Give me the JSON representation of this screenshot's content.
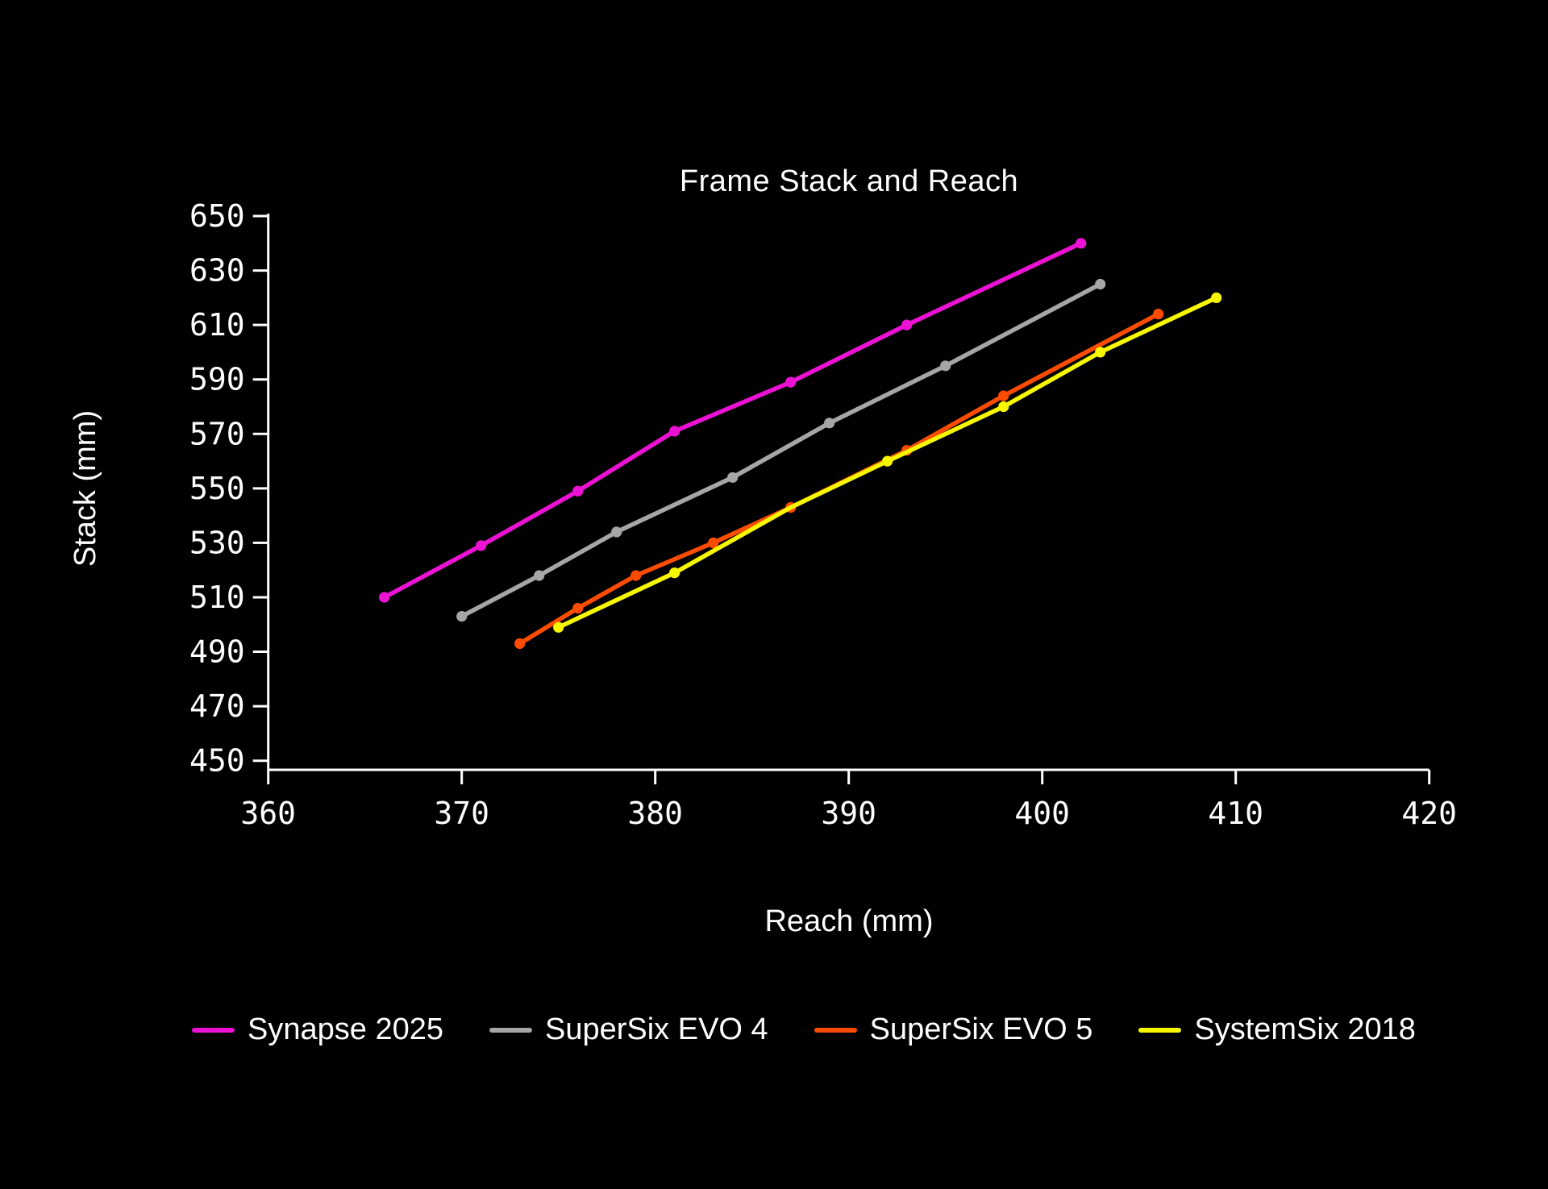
{
  "title": "Frame Stack and Reach",
  "colors": {
    "background": "#000000",
    "text": "#FFFFFF",
    "axis": "#FFFFFF",
    "synapse": "#EC12D4",
    "evo4": "#A6A6A6",
    "evo5": "#FC4C02",
    "systemsix": "#F7F700"
  },
  "legend": {
    "items": [
      {
        "label": "Synapse 2025",
        "color": "#EC12D4"
      },
      {
        "label": "SuperSix EVO 4",
        "color": "#A6A6A6"
      },
      {
        "label": "SuperSix EVO 5",
        "color": "#FC4C02"
      },
      {
        "label": "SystemSix 2018",
        "color": "#F7F700"
      }
    ]
  },
  "chart_data": {
    "type": "line",
    "title": "Frame Stack and Reach",
    "xlabel": "Reach (mm)",
    "ylabel": "Stack (mm)",
    "xlim": [
      360,
      420
    ],
    "ylim": [
      450,
      650
    ],
    "x_ticks": [
      360,
      370,
      380,
      390,
      400,
      410,
      420
    ],
    "y_ticks": [
      450,
      470,
      490,
      510,
      530,
      550,
      570,
      590,
      610,
      630,
      650
    ],
    "grid": false,
    "legend_position": "bottom",
    "series": [
      {
        "name": "Synapse 2025",
        "color": "#EC12D4",
        "points": [
          [
            366,
            510
          ],
          [
            371,
            529
          ],
          [
            376,
            549
          ],
          [
            381,
            571
          ],
          [
            387,
            589
          ],
          [
            393,
            610
          ],
          [
            402,
            640
          ]
        ]
      },
      {
        "name": "SuperSix EVO 4",
        "color": "#A6A6A6",
        "points": [
          [
            370,
            503
          ],
          [
            374,
            518
          ],
          [
            378,
            534
          ],
          [
            384,
            554
          ],
          [
            389,
            574
          ],
          [
            395,
            595
          ],
          [
            403,
            625
          ]
        ]
      },
      {
        "name": "SuperSix EVO 5",
        "color": "#FC4C02",
        "points": [
          [
            373,
            493
          ],
          [
            376,
            506
          ],
          [
            379,
            518
          ],
          [
            383,
            530
          ],
          [
            387,
            543
          ],
          [
            393,
            564
          ],
          [
            398,
            584
          ],
          [
            406,
            614
          ]
        ]
      },
      {
        "name": "SystemSix 2018",
        "color": "#F7F700",
        "points": [
          [
            375,
            499
          ],
          [
            381,
            519
          ],
          [
            387,
            543
          ],
          [
            392,
            560
          ],
          [
            398,
            580
          ],
          [
            403,
            600
          ],
          [
            409,
            620
          ]
        ],
        "hidden_markers": [
          2
        ]
      }
    ]
  }
}
